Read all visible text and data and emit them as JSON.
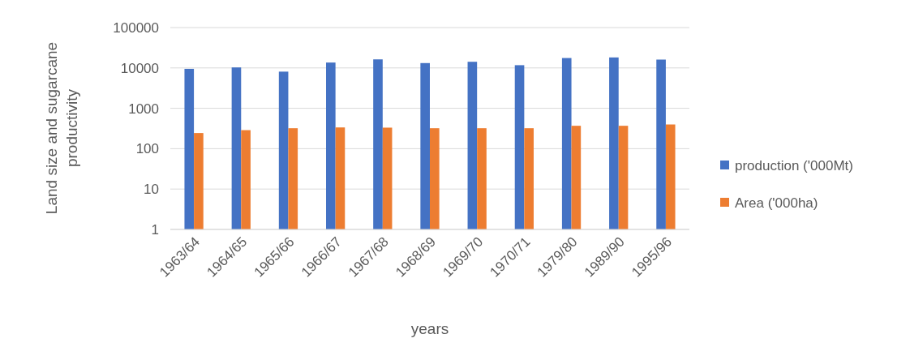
{
  "chart_data": {
    "type": "bar",
    "xlabel": "years",
    "ylabel": "Land size and sugarcane productivity",
    "categories": [
      "1963/64",
      "1964/65",
      "1965/66",
      "1966/67",
      "1967/68",
      "1968/69",
      "1969/70",
      "1970/71",
      "1979/80",
      "1989/90",
      "1995/96"
    ],
    "series": [
      {
        "name": "production ('000Mt)",
        "color": "#4472c4",
        "values": [
          9500,
          10300,
          8100,
          13600,
          16300,
          13200,
          14200,
          11700,
          17600,
          18200,
          16100
        ]
      },
      {
        "name": "Area ('000ha)",
        "color": "#ed7d31",
        "values": [
          244,
          288,
          321,
          336,
          332,
          321,
          321,
          321,
          369,
          369,
          398
        ]
      }
    ],
    "log": "y",
    "ylim": [
      1,
      100000
    ],
    "yticks": [
      1,
      10,
      100,
      1000,
      10000,
      100000
    ],
    "grid": "y",
    "legend": "right"
  }
}
